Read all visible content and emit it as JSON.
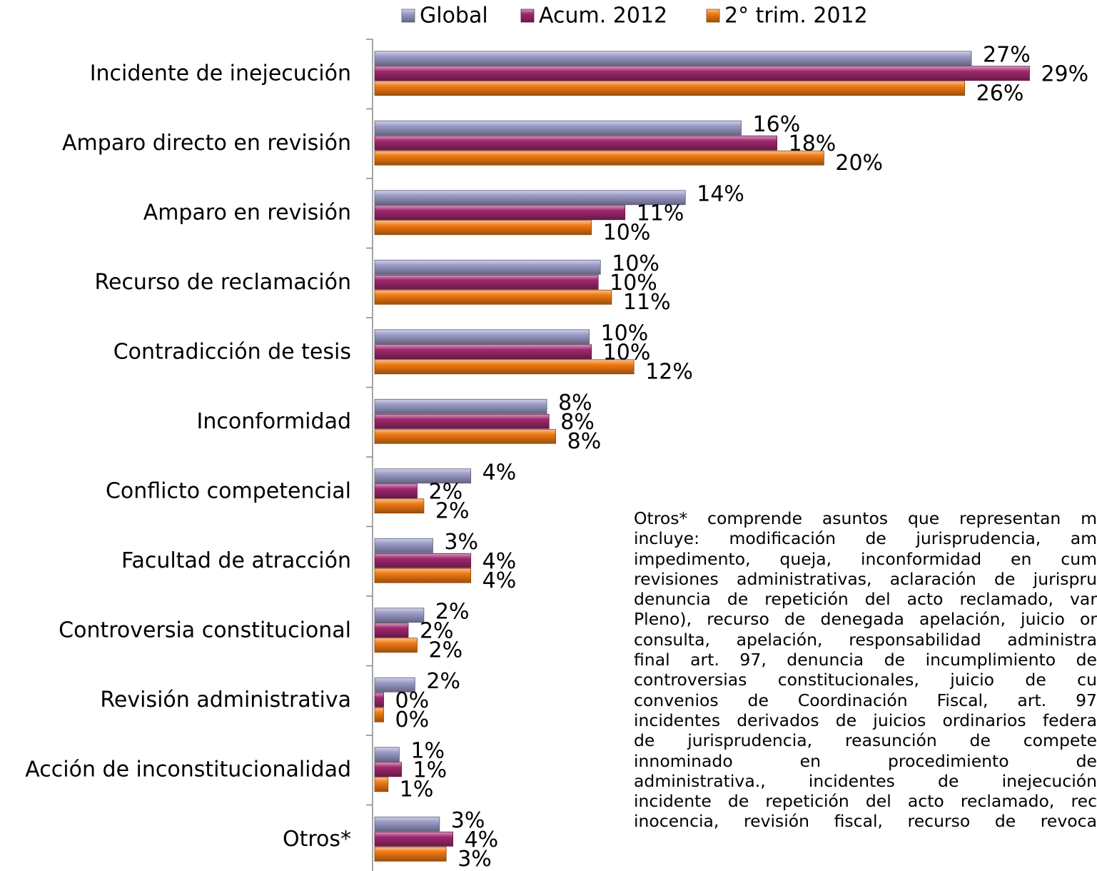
{
  "chart_data": {
    "type": "hbar",
    "categories": [
      "Incidente de inejecución",
      "Amparo directo en revisión",
      "Amparo en revisión",
      "Recurso de reclamación",
      "Contradicción de tesis",
      "Inconformidad",
      "Conflicto competencial",
      "Facultad de atracción",
      "Controversia constitucional",
      "Revisión administrativa",
      "Acción de inconstitucionalidad",
      "Otros*"
    ],
    "series": [
      {
        "name": "Global",
        "color": "#9b9bc9",
        "values": [
          26.7,
          16.4,
          13.9,
          10.1,
          9.6,
          7.7,
          4.3,
          2.6,
          2.2,
          1.8,
          1.1,
          2.9
        ],
        "value_labels": [
          "27%",
          "16%",
          "14%",
          "10%",
          "10%",
          "8%",
          "4%",
          "3%",
          "2%",
          "2%",
          "1%",
          "3%"
        ]
      },
      {
        "name": "Acum. 2012",
        "color": "#a0286e",
        "values": [
          29.3,
          18.0,
          11.2,
          10.0,
          9.7,
          7.8,
          1.9,
          4.3,
          1.5,
          0.4,
          1.2,
          3.5
        ],
        "value_labels": [
          "29%",
          "18%",
          "11%",
          "10%",
          "10%",
          "8%",
          "2%",
          "4%",
          "2%",
          "0%",
          "1%",
          "4%"
        ]
      },
      {
        "name": "2° trim. 2012",
        "color": "#f07a12",
        "values": [
          26.4,
          20.1,
          9.7,
          10.6,
          11.6,
          8.1,
          2.2,
          4.3,
          1.9,
          0.4,
          0.6,
          3.2
        ],
        "value_labels": [
          "26%",
          "20%",
          "10%",
          "11%",
          "12%",
          "8%",
          "2%",
          "4%",
          "2%",
          "0%",
          "1%",
          "3%"
        ]
      }
    ],
    "xlim": [
      0,
      32
    ],
    "legend": "top",
    "annotation": [
      "Otros* comprende asuntos que representan m",
      "incluye: modificación de jurisprudencia, am",
      "impedimento, queja, inconformidad en cum",
      "revisiones administrativas, aclaración de jurispru",
      "denuncia de repetición del acto reclamado, var",
      "Pleno), recurso de denegada apelación, juicio or",
      "consulta, apelación, responsabilidad administra",
      "final art. 97, denuncia de incumplimiento de",
      "controversias constitucionales, juicio de cu",
      "convenios de Coordinación Fiscal, art. 97",
      "incidentes derivados de juicios ordinarios federa",
      "de jurisprudencia, reasunción de compete",
      "innominado en procedimiento de",
      "administrativa., incidentes de inejecución",
      "incidente de repetición del acto reclamado, rec",
      "inocencia, revisión fiscal, recurso de revoca"
    ]
  }
}
